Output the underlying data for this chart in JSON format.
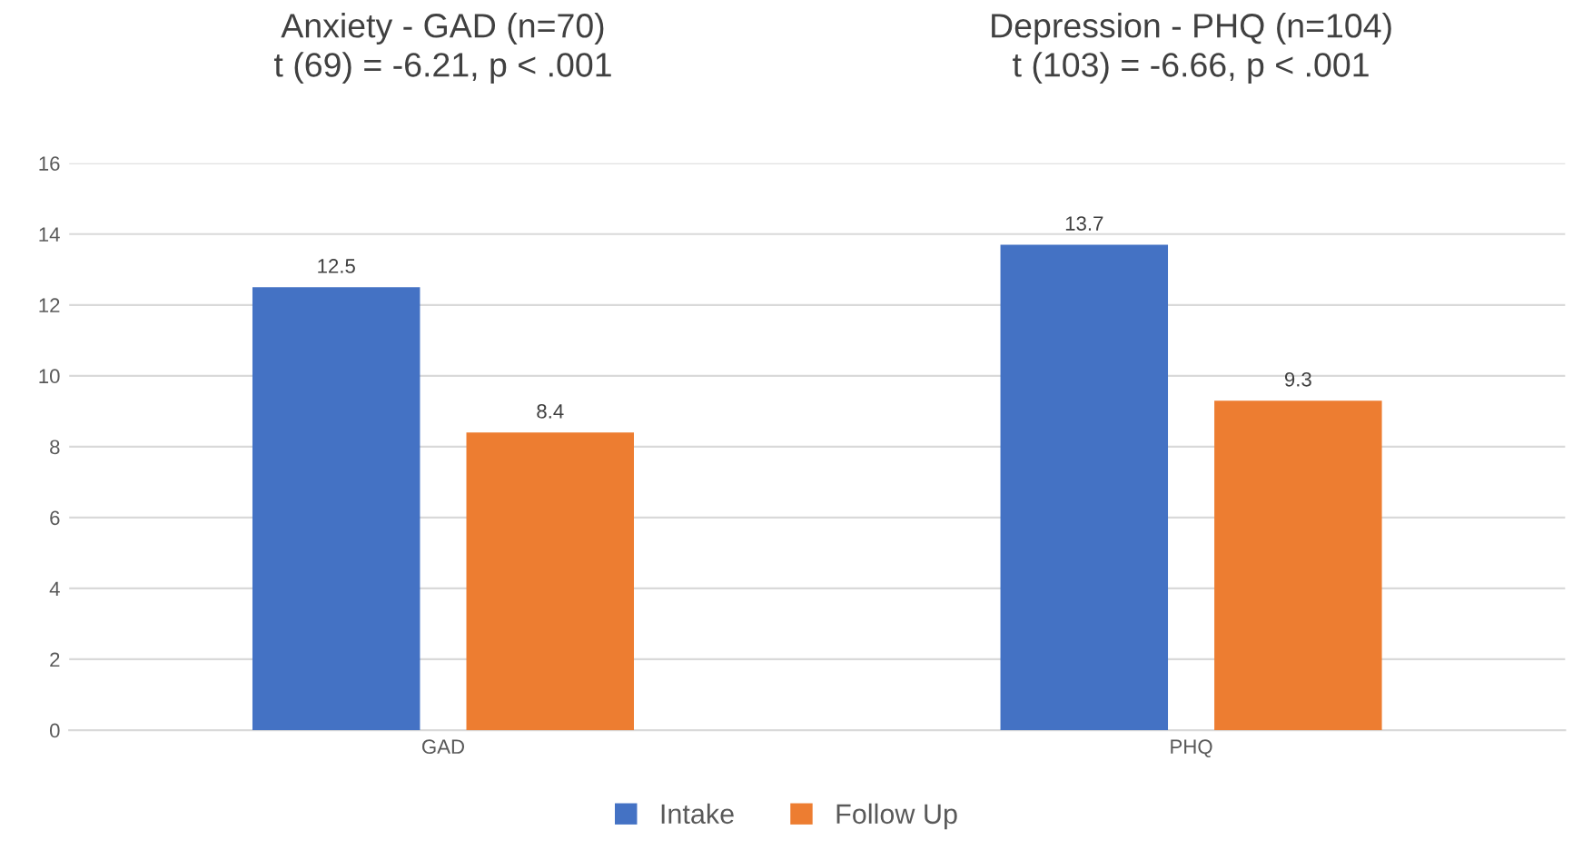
{
  "chart_data": {
    "type": "bar",
    "categories": [
      "GAD",
      "PHQ"
    ],
    "series": [
      {
        "name": "Intake",
        "color": "#4472c4",
        "values": [
          12.5,
          13.7
        ]
      },
      {
        "name": "Follow Up",
        "color": "#ed7d31",
        "values": [
          8.4,
          9.3
        ]
      }
    ],
    "ylim": [
      0,
      16
    ],
    "yticks": [
      0,
      2,
      4,
      6,
      8,
      10,
      12,
      14,
      16
    ],
    "grid": "y",
    "legend": "bottom",
    "data_labels": true,
    "annotations": [
      "Anxiety - GAD (n=70)\nt (69) = -6.21, p < .001",
      "Depression - PHQ (n=104)\nt (103) = -6.66, p < .001"
    ]
  }
}
